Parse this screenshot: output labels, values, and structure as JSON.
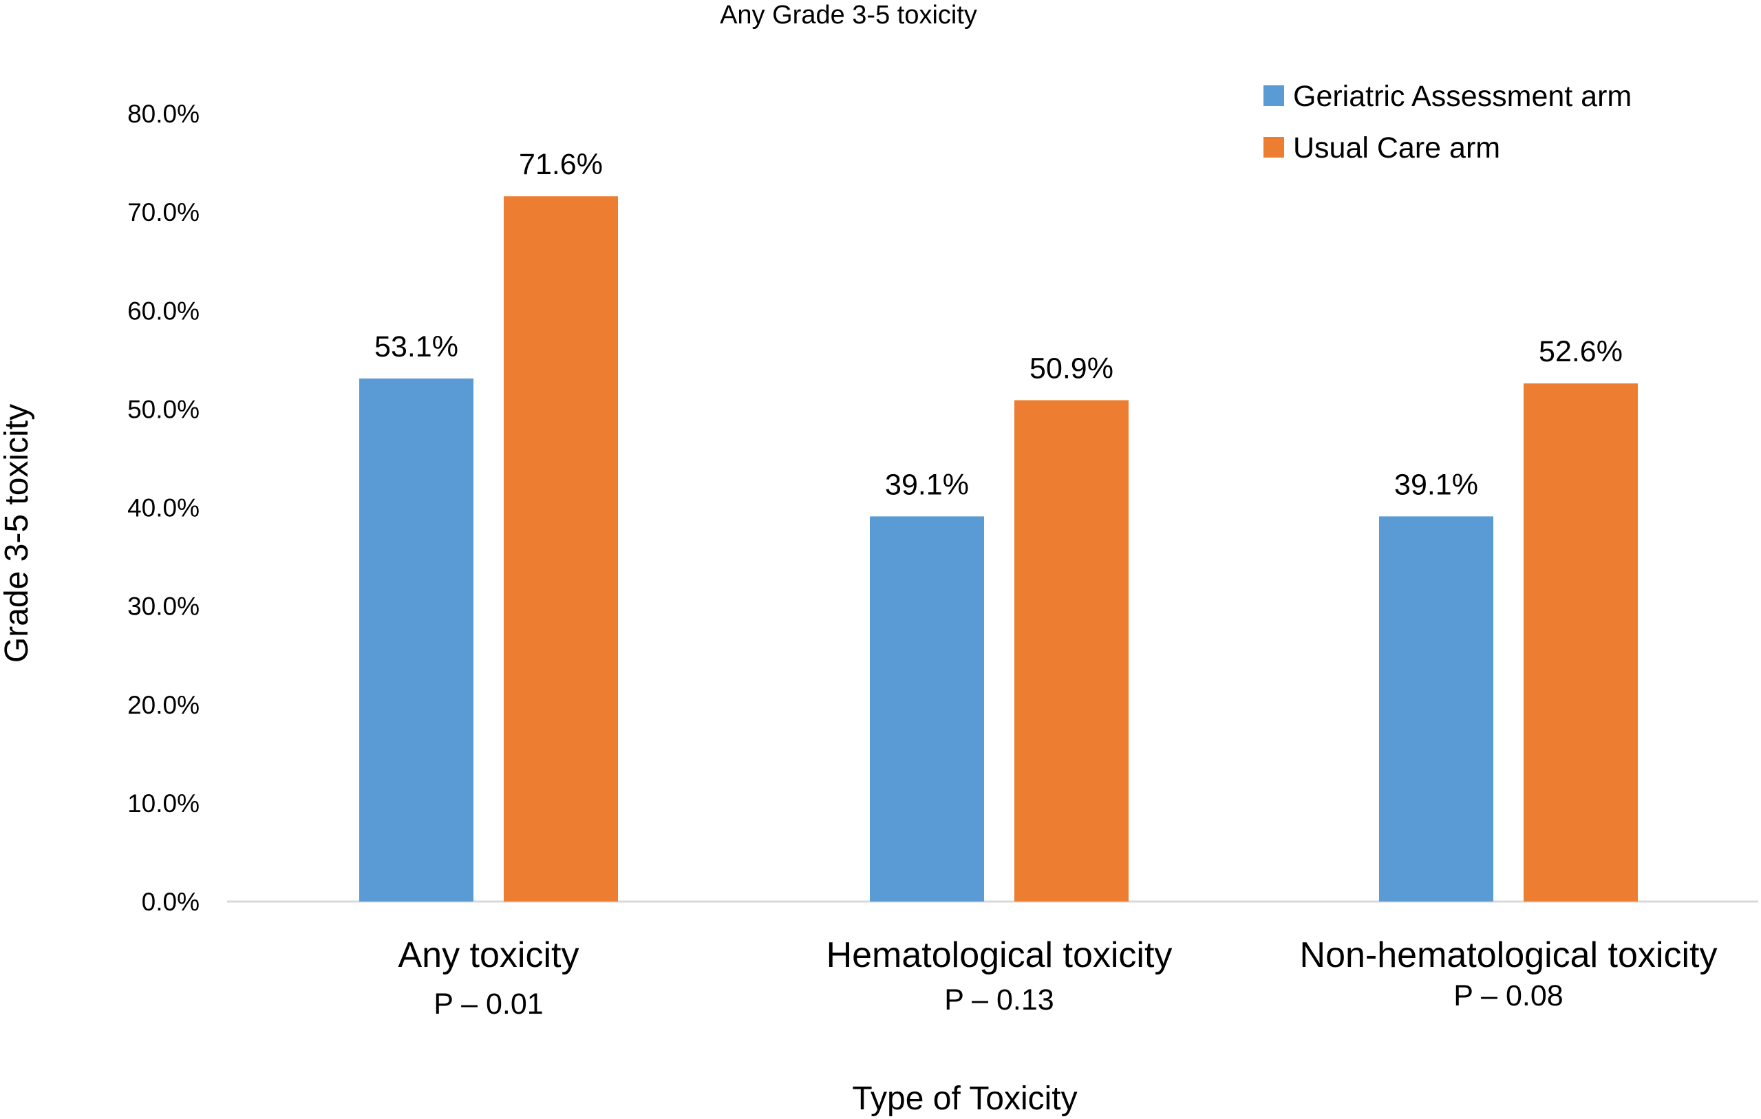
{
  "chart_data": {
    "type": "bar",
    "title": "Any Grade 3-5 toxicity",
    "xlabel": "Type of Toxicity",
    "ylabel": "Grade 3-5 toxicity",
    "ylim": [
      0,
      80
    ],
    "yticks": [
      0,
      10,
      20,
      30,
      40,
      50,
      60,
      70,
      80
    ],
    "ytick_labels": [
      "0.0%",
      "10.0%",
      "20.0%",
      "30.0%",
      "40.0%",
      "50.0%",
      "60.0%",
      "70.0%",
      "80.0%"
    ],
    "categories": [
      "Any toxicity",
      "Hematological toxicity",
      "Non-hematological toxicity"
    ],
    "pvalues": [
      "P – 0.01",
      "P – 0.13",
      "P – 0.08"
    ],
    "legend_position": "top-right",
    "grid": false,
    "series": [
      {
        "name": "Geriatric Assessment arm",
        "color": "#5B9BD5",
        "values": [
          53.1,
          39.1,
          39.1
        ],
        "labels": [
          "53.1%",
          "39.1%",
          "39.1%"
        ]
      },
      {
        "name": "Usual Care arm",
        "color": "#ED7D31",
        "values": [
          71.6,
          50.9,
          52.6
        ],
        "labels": [
          "71.6%",
          "50.9%",
          "52.6%"
        ]
      }
    ]
  }
}
